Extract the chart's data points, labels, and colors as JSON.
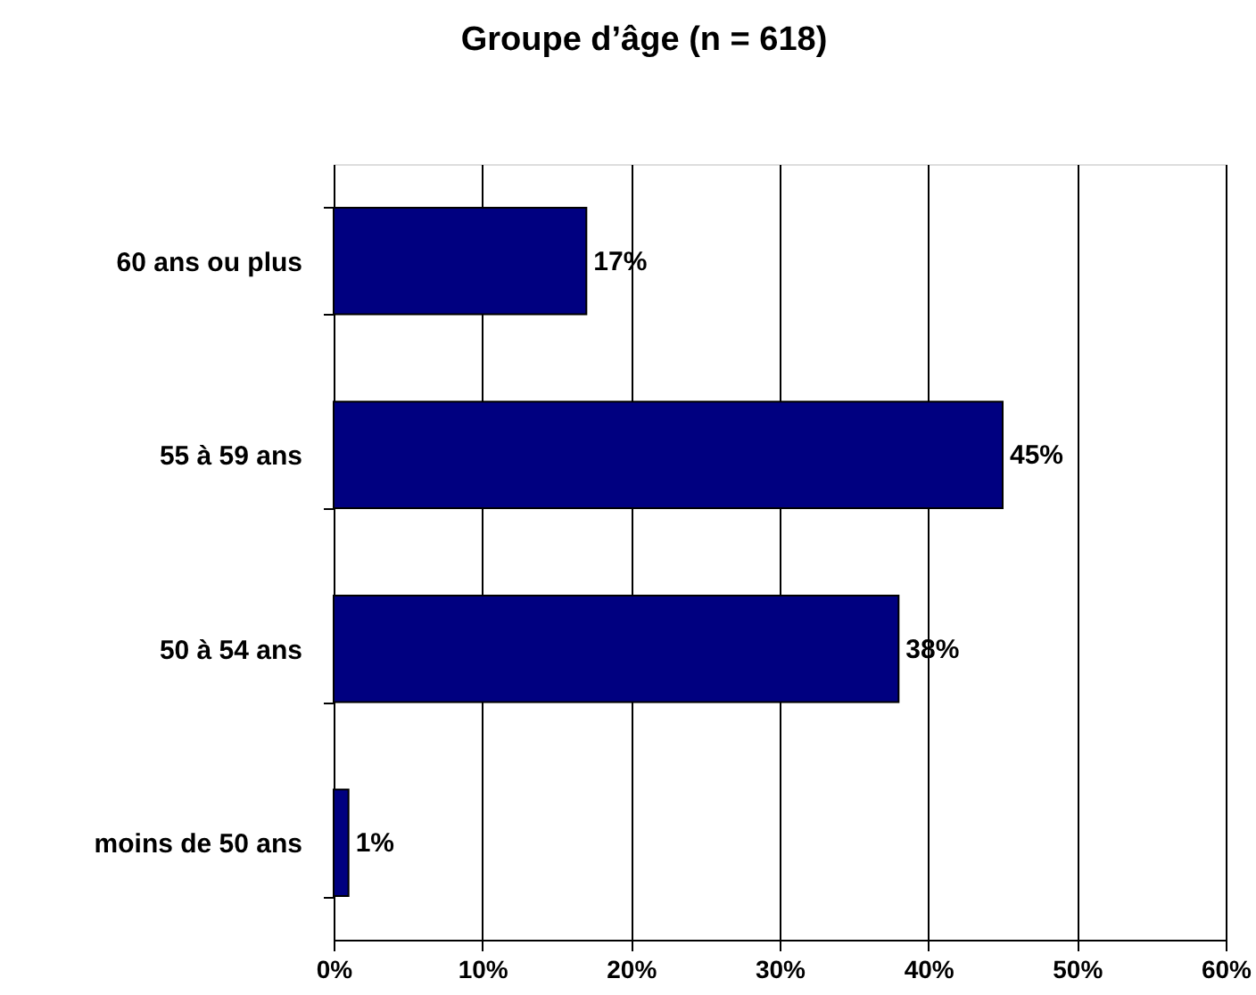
{
  "chart_data": {
    "type": "bar",
    "orientation": "horizontal",
    "title": "Groupe d’âge (n = 618)",
    "categories": [
      "60 ans ou plus",
      "55 à 59 ans",
      "50 à 54 ans",
      "moins de 50 ans"
    ],
    "values": [
      17,
      45,
      38,
      1
    ],
    "color": "#000080",
    "value_labels": [
      "17%",
      "45%",
      "38%",
      "1%"
    ],
    "xlim": [
      0,
      60
    ],
    "xticks": [
      {
        "value": 0,
        "label": "0%"
      },
      {
        "value": 10,
        "label": "10%"
      },
      {
        "value": 20,
        "label": "20%"
      },
      {
        "value": 30,
        "label": "30%"
      },
      {
        "value": 40,
        "label": "40%"
      },
      {
        "value": 50,
        "label": "50%"
      },
      {
        "value": 60,
        "label": "60%"
      }
    ],
    "grid": "x"
  }
}
